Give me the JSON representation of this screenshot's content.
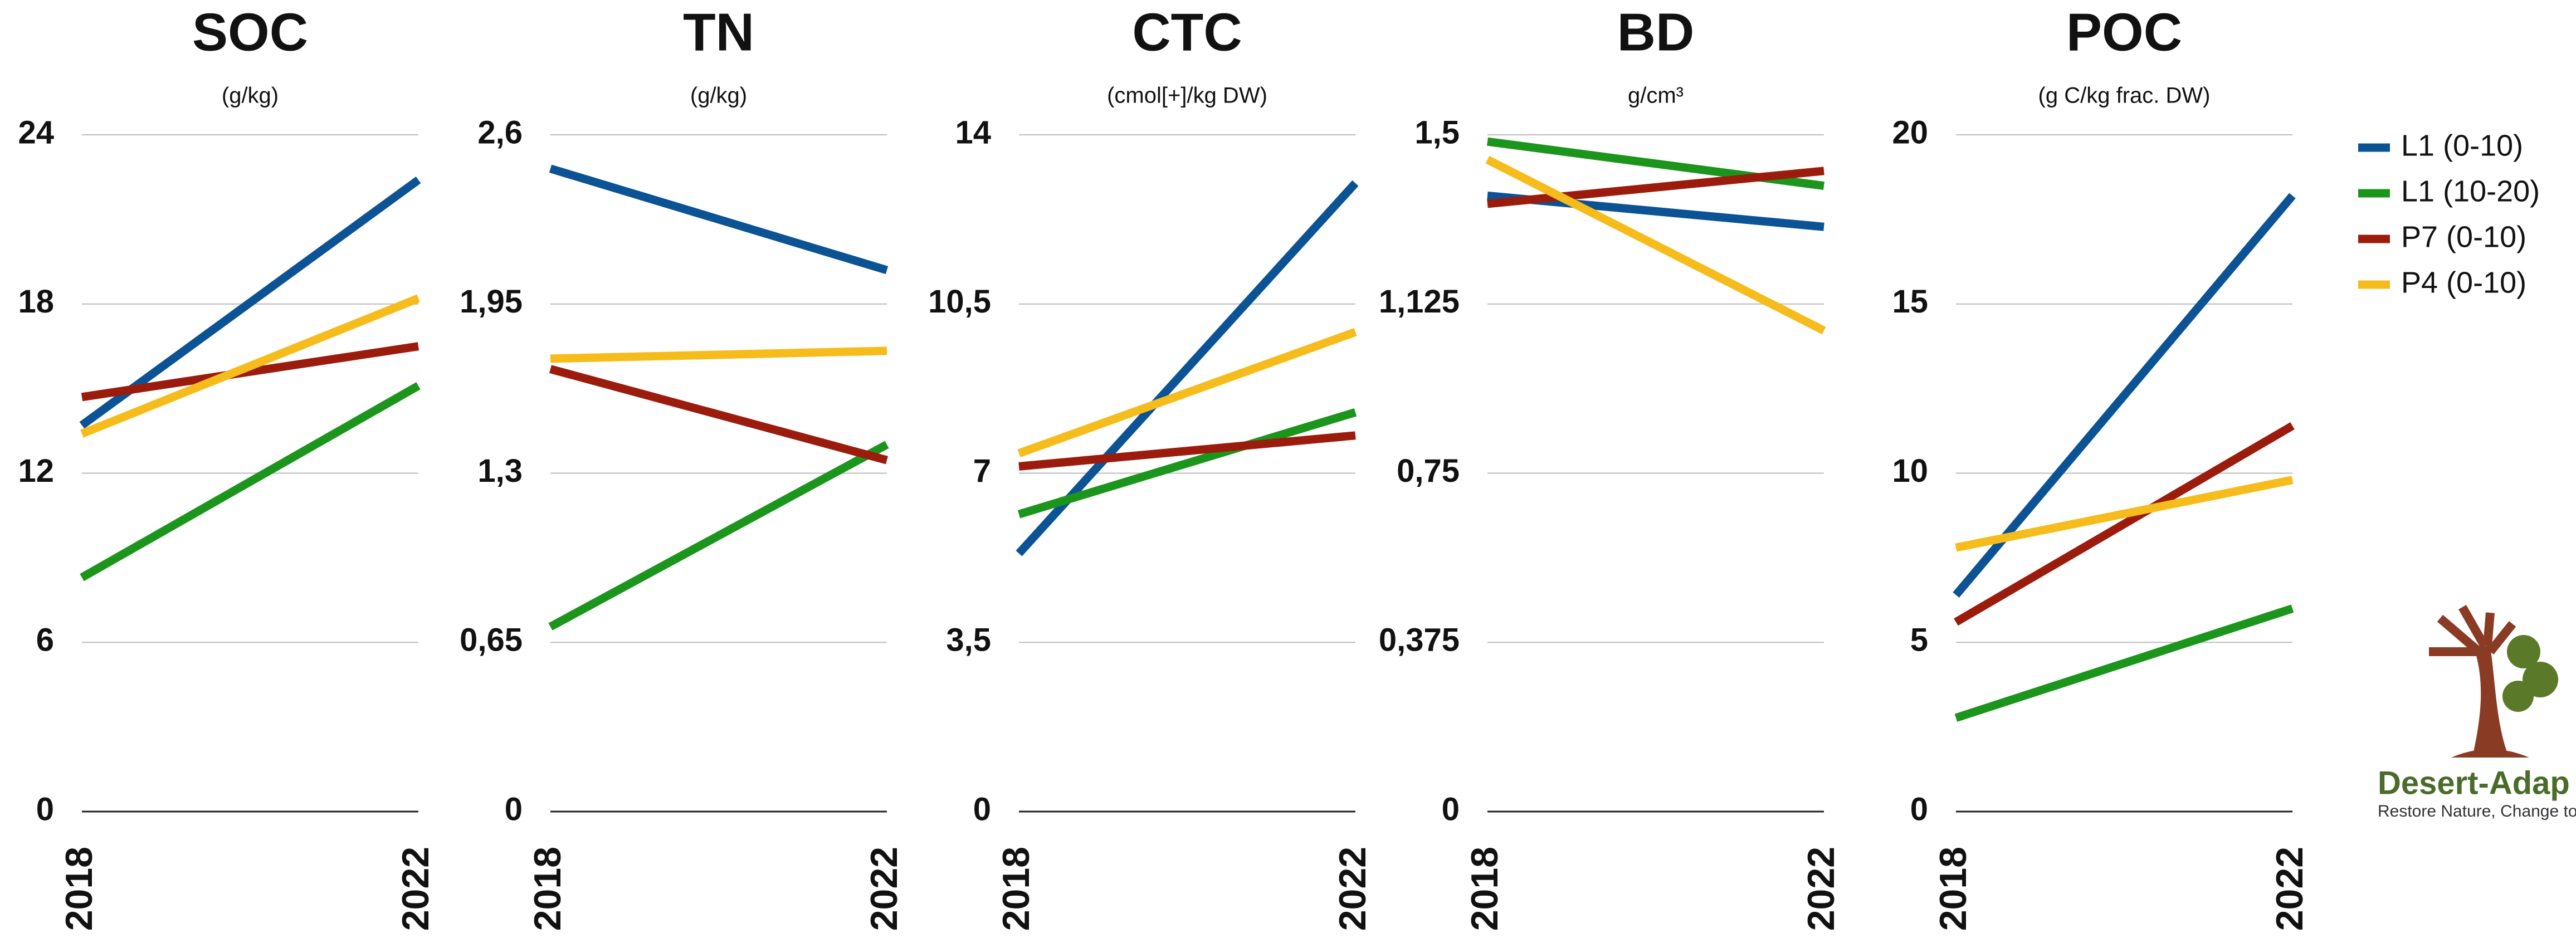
{
  "legend": {
    "position": "right",
    "items": [
      {
        "name": "L1 (0-10)",
        "color": "#0b5394"
      },
      {
        "name": "L1 (10-20)",
        "color": "#1b951b"
      },
      {
        "name": "P7 (0-10)",
        "color": "#9b1c0c"
      },
      {
        "name": "P4 (0-10)",
        "color": "#f5bc1b"
      }
    ]
  },
  "logo": {
    "name": "Desert-Adap",
    "tagline": "Restore Nature, Change to Ad"
  },
  "chart_data": [
    {
      "type": "line",
      "title": "SOC",
      "subtitle": "(g/kg)",
      "categories": [
        "2018",
        "2022"
      ],
      "ylim": [
        0,
        24
      ],
      "yticks": [
        0,
        6,
        12,
        18,
        24
      ],
      "grid": true,
      "series": [
        {
          "values": [
            13.7,
            22.4
          ]
        },
        {
          "values": [
            8.3,
            15.1
          ]
        },
        {
          "values": [
            14.7,
            16.5
          ]
        },
        {
          "values": [
            13.4,
            18.2
          ]
        }
      ]
    },
    {
      "type": "line",
      "title": "TN",
      "subtitle": "(g/kg)",
      "categories": [
        "2018",
        "2022"
      ],
      "ylim": [
        0,
        2.6
      ],
      "yticks": [
        0,
        {
          "value": 0.65,
          "label": "0,65"
        },
        {
          "value": 1.3,
          "label": "1,3"
        },
        {
          "value": 1.95,
          "label": "1,95"
        },
        {
          "value": 2.6,
          "label": "2,6"
        }
      ],
      "grid": true,
      "series": [
        {
          "values": [
            2.47,
            2.08
          ]
        },
        {
          "values": [
            0.71,
            1.41
          ]
        },
        {
          "values": [
            1.7,
            1.35
          ]
        },
        {
          "values": [
            1.74,
            1.77
          ]
        }
      ]
    },
    {
      "type": "line",
      "title": "CTC",
      "subtitle": "(cmol[+]/kg DW)",
      "categories": [
        "2018",
        "2022"
      ],
      "ylim": [
        0,
        14
      ],
      "yticks": [
        0,
        {
          "value": 3.5,
          "label": "3,5"
        },
        7,
        {
          "value": 10.5,
          "label": "10,5"
        },
        14
      ],
      "grid": true,
      "series": [
        {
          "values": [
            5.34,
            13.0
          ]
        },
        {
          "values": [
            6.15,
            8.26
          ]
        },
        {
          "values": [
            7.14,
            7.78
          ]
        },
        {
          "values": [
            7.41,
            9.92
          ]
        }
      ]
    },
    {
      "type": "line",
      "title": "BD",
      "subtitle": "g/cm³",
      "categories": [
        "2018",
        "2022"
      ],
      "ylim": [
        0,
        1.5
      ],
      "yticks": [
        0,
        {
          "value": 0.375,
          "label": "0,375"
        },
        {
          "value": 0.75,
          "label": "0,75"
        },
        {
          "value": 1.125,
          "label": "1,125"
        },
        {
          "value": 1.5,
          "label": "1,5"
        }
      ],
      "grid": true,
      "series": [
        {
          "values": [
            1.365,
            1.296
          ]
        },
        {
          "values": [
            1.485,
            1.387
          ]
        },
        {
          "values": [
            1.347,
            1.42
          ]
        },
        {
          "values": [
            1.445,
            1.066
          ]
        }
      ]
    },
    {
      "type": "line",
      "title": "POC",
      "subtitle": "(g C/kg frac. DW)",
      "categories": [
        "2018",
        "2022"
      ],
      "ylim": [
        0,
        20
      ],
      "yticks": [
        0,
        5,
        10,
        15,
        20
      ],
      "grid": true,
      "series": [
        {
          "values": [
            6.4,
            18.2
          ]
        },
        {
          "values": [
            2.77,
            6.0
          ]
        },
        {
          "values": [
            5.6,
            11.4
          ]
        },
        {
          "values": [
            7.8,
            9.8
          ]
        }
      ]
    }
  ]
}
